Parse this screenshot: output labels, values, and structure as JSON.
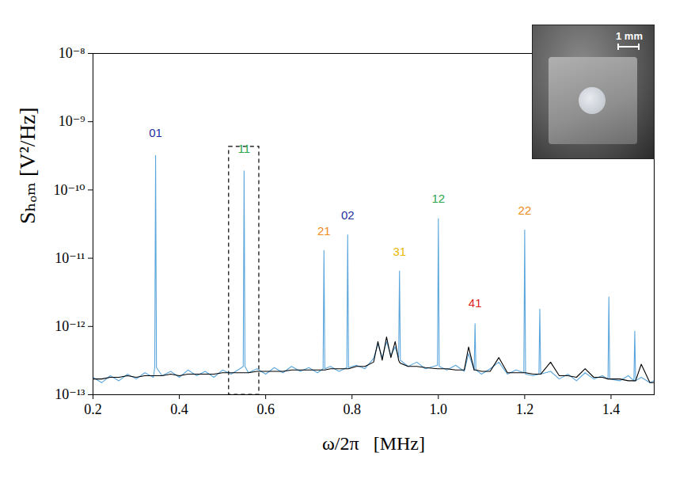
{
  "chart_data": {
    "type": "line",
    "x_label": "ω/2π   [MHz]",
    "y_label": "Sₕₒₘ [V²/Hz]",
    "log": "y",
    "grid": false,
    "xlim": [
      0.2,
      1.5
    ],
    "xticks": [
      0.2,
      0.4,
      0.6,
      0.8,
      {
        "value": 1,
        "label": "1.0"
      },
      1.2,
      1.4
    ],
    "ylim": [
      1e-13,
      1e-08
    ],
    "yticks": [
      {
        "value": 1e-13,
        "label": "10⁻¹³"
      },
      {
        "value": 1e-12,
        "label": "10⁻¹²"
      },
      {
        "value": 1e-11,
        "label": "10⁻¹¹"
      },
      {
        "value": 1e-10,
        "label": "10⁻¹⁰"
      },
      {
        "value": 1e-09,
        "label": "10⁻⁹"
      },
      {
        "value": 1e-08,
        "label": "10⁻⁸"
      }
    ],
    "x": [
      0.2,
      0.22,
      0.24,
      0.26,
      0.28,
      0.3,
      0.32,
      0.34,
      0.343,
      0.345,
      0.347,
      0.36,
      0.38,
      0.4,
      0.42,
      0.44,
      0.46,
      0.48,
      0.5,
      0.52,
      0.54,
      0.548,
      0.55,
      0.552,
      0.56,
      0.58,
      0.6,
      0.62,
      0.64,
      0.66,
      0.68,
      0.7,
      0.72,
      0.733,
      0.735,
      0.737,
      0.75,
      0.77,
      0.788,
      0.79,
      0.792,
      0.81,
      0.83,
      0.85,
      0.86,
      0.87,
      0.88,
      0.89,
      0.9,
      0.908,
      0.91,
      0.912,
      0.93,
      0.95,
      0.97,
      0.998,
      1.0,
      1.002,
      1.02,
      1.04,
      1.06,
      1.07,
      1.083,
      1.085,
      1.087,
      1.1,
      1.12,
      1.14,
      1.16,
      1.18,
      1.198,
      1.2,
      1.202,
      1.22,
      1.233,
      1.235,
      1.237,
      1.26,
      1.28,
      1.3,
      1.32,
      1.34,
      1.36,
      1.38,
      1.393,
      1.395,
      1.397,
      1.42,
      1.44,
      1.453,
      1.455,
      1.457,
      1.47,
      1.49,
      1.5
    ],
    "series": [
      {
        "color": "#5aa6dc",
        "values": [
          1.8e-13,
          1.5e-13,
          1.9e-13,
          1.6e-13,
          2e-13,
          1.7e-13,
          2.1e-13,
          1.8e-13,
          2.5e-13,
          3.2e-10,
          2.5e-13,
          1.9e-13,
          2.2e-13,
          1.8e-13,
          2.3e-13,
          1.9e-13,
          2.2e-13,
          1.8e-13,
          2.3e-13,
          2e-13,
          2.4e-13,
          2.6e-13,
          1.9e-10,
          2.6e-13,
          2.1e-13,
          2.4e-13,
          2e-13,
          2.5e-13,
          2.1e-13,
          2.6e-13,
          2.2e-13,
          2.5e-13,
          2.1e-13,
          2.4e-13,
          1.3e-11,
          2.4e-13,
          2.6e-13,
          2.2e-13,
          2.5e-13,
          2.2e-11,
          2.5e-13,
          2.7e-13,
          2.4e-13,
          3.4e-13,
          5.5e-13,
          3.5e-13,
          6e-13,
          3.8e-13,
          5e-13,
          3.5e-13,
          6.5e-12,
          3.2e-13,
          2.6e-13,
          3e-13,
          2.4e-13,
          2.7e-13,
          3.8e-11,
          2.6e-13,
          2.3e-13,
          2.7e-13,
          2.2e-13,
          4e-13,
          2.3e-13,
          1.1e-12,
          2.3e-13,
          2e-13,
          2.4e-13,
          3e-13,
          2e-13,
          2.3e-13,
          2.1e-13,
          2.6e-11,
          2e-13,
          1.9e-13,
          2e-13,
          1.8e-12,
          2e-13,
          2.2e-13,
          1.7e-13,
          2e-13,
          1.6e-13,
          2.1e-13,
          1.7e-13,
          1.9e-13,
          1.7e-13,
          2.7e-12,
          1.7e-13,
          1.6e-13,
          1.9e-13,
          1.6e-13,
          8.5e-13,
          1.6e-13,
          1.8e-13,
          1.5e-13,
          1.6e-13
        ]
      },
      {
        "color": "#000000",
        "values": [
          1.7e-13,
          1.7e-13,
          1.8e-13,
          1.8e-13,
          1.9e-13,
          1.8e-13,
          1.9e-13,
          1.9e-13,
          1.9e-13,
          1.9e-13,
          1.9e-13,
          1.9e-13,
          2e-13,
          1.9e-13,
          2e-13,
          2e-13,
          2e-13,
          2e-13,
          2.1e-13,
          2.1e-13,
          2.1e-13,
          2.1e-13,
          2.1e-13,
          2.1e-13,
          2.1e-13,
          2.2e-13,
          2.2e-13,
          2.2e-13,
          2.2e-13,
          2.3e-13,
          2.3e-13,
          2.3e-13,
          2.3e-13,
          2.3e-13,
          2.3e-13,
          2.3e-13,
          2.4e-13,
          2.4e-13,
          2.4e-13,
          2.4e-13,
          2.4e-13,
          2.6e-13,
          2.6e-13,
          3e-13,
          6e-13,
          3.2e-13,
          7e-13,
          3.5e-13,
          6e-13,
          3.2e-13,
          3e-13,
          2.9e-13,
          2.6e-13,
          2.6e-13,
          2.5e-13,
          2.4e-13,
          2.4e-13,
          2.4e-13,
          2.4e-13,
          2.3e-13,
          2.3e-13,
          5e-13,
          2.3e-13,
          2.3e-13,
          2.3e-13,
          2.2e-13,
          2.2e-13,
          3.5e-13,
          2.1e-13,
          2.1e-13,
          2.1e-13,
          2.1e-13,
          2.1e-13,
          2e-13,
          2e-13,
          2e-13,
          2e-13,
          3e-13,
          1.9e-13,
          1.9e-13,
          1.8e-13,
          2.4e-13,
          1.8e-13,
          1.8e-13,
          1.7e-13,
          1.7e-13,
          1.7e-13,
          1.7e-13,
          1.6e-13,
          1.6e-13,
          1.6e-13,
          1.6e-13,
          2.8e-13,
          1.5e-13,
          1.5e-13
        ]
      }
    ],
    "annotations": [
      {
        "text": "01",
        "x": 0.345,
        "y": 6e-10,
        "color": "#1f2f9e"
      },
      {
        "text": "11",
        "x": 0.55,
        "y": 3.5e-10,
        "color": "#2aa54a"
      },
      {
        "text": "21",
        "x": 0.735,
        "y": 2.2e-11,
        "color": "#f08a1a"
      },
      {
        "text": "02",
        "x": 0.79,
        "y": 3.7e-11,
        "color": "#1f2f9e"
      },
      {
        "text": "31",
        "x": 0.91,
        "y": 1.1e-11,
        "color": "#e8b800"
      },
      {
        "text": "12",
        "x": 1.0,
        "y": 6.5e-11,
        "color": "#2aa54a"
      },
      {
        "text": "41",
        "x": 1.085,
        "y": 1.9e-12,
        "color": "#e02020"
      },
      {
        "text": "22",
        "x": 1.2,
        "y": 4.4e-11,
        "color": "#f08a1a"
      }
    ],
    "highlight": {
      "x": [
        0.515,
        0.585
      ],
      "y": [
        1e-13,
        4.3e-10
      ]
    },
    "inset_label": "1 mm"
  }
}
